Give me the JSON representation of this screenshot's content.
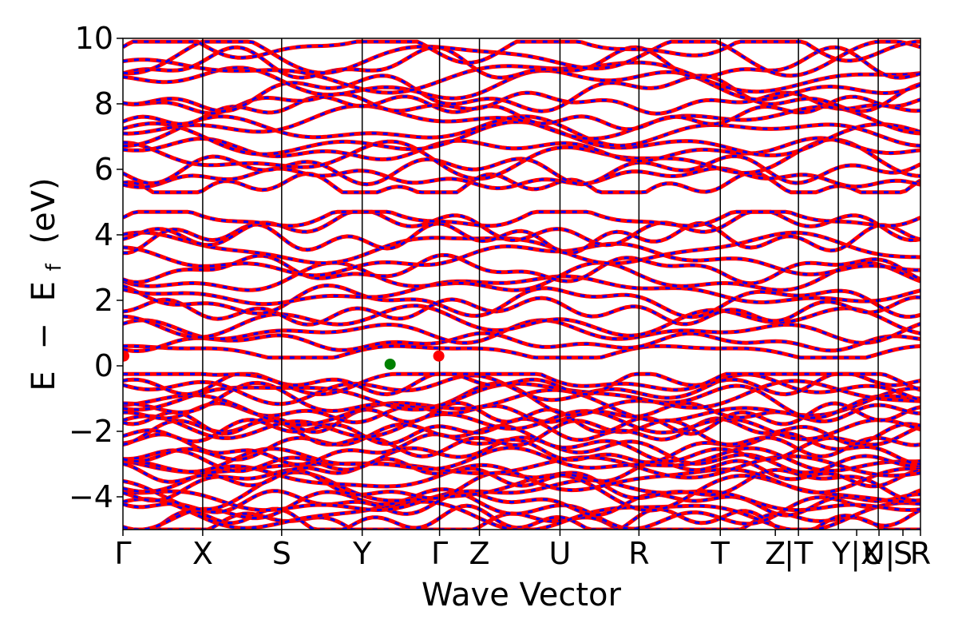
{
  "chart_data": {
    "type": "line",
    "title": "",
    "xlabel": "Wave Vector",
    "ylabel_parts": [
      "E",
      "−",
      "E",
      "f",
      "(eV)"
    ],
    "ylim": [
      -5,
      10
    ],
    "yticks": [
      -4,
      -2,
      0,
      2,
      4,
      6,
      8,
      10
    ],
    "ytick_labels": [
      "−4",
      "−2",
      "0",
      "2",
      "4",
      "6",
      "8",
      "10"
    ],
    "xlim": [
      0,
      1
    ],
    "kpoint_ticks": [
      {
        "label": "Γ",
        "x": 0.0
      },
      {
        "label": "X",
        "x": 0.1
      },
      {
        "label": "S",
        "x": 0.199
      },
      {
        "label": "Y",
        "x": 0.3
      },
      {
        "label": "Γ",
        "x": 0.397
      },
      {
        "label": "Z",
        "x": 0.447
      },
      {
        "label": "U",
        "x": 0.548
      },
      {
        "label": "R",
        "x": 0.647
      },
      {
        "label": "T",
        "x": 0.749
      },
      {
        "label": "Z",
        "x": 0.818
      },
      {
        "label": "|T",
        "x": 0.847
      },
      {
        "label": "Y|X",
        "x": 0.92
      },
      {
        "label": "U|",
        "x": 0.948
      },
      {
        "label": "S",
        "x": 0.978
      },
      {
        "label": "R",
        "x": 1.0
      }
    ],
    "vlines_x": [
      0.1,
      0.199,
      0.3,
      0.397,
      0.447,
      0.548,
      0.647,
      0.749,
      0.847,
      0.897,
      0.947
    ],
    "grid": false,
    "series": [
      {
        "role": "spin-up",
        "color": "#ff0000"
      },
      {
        "role": "spin-down",
        "color": "#0000ff"
      }
    ],
    "band_sets": [
      {
        "region": "valence",
        "count": 26,
        "range": [
          -5.0,
          -0.25
        ]
      },
      {
        "region": "conduction_low",
        "count": 14,
        "range": [
          0.25,
          4.7
        ]
      },
      {
        "region": "conduction_high",
        "count": 16,
        "range": [
          5.3,
          9.9
        ]
      }
    ],
    "markers": [
      {
        "role": "VBM",
        "x": 0.335,
        "y": 0.05,
        "color": "#008000"
      },
      {
        "role": "CBM",
        "x": 0.001,
        "y": 0.3,
        "color": "#ff0000"
      },
      {
        "role": "CBM",
        "x": 0.396,
        "y": 0.3,
        "color": "#ff0000"
      }
    ]
  }
}
